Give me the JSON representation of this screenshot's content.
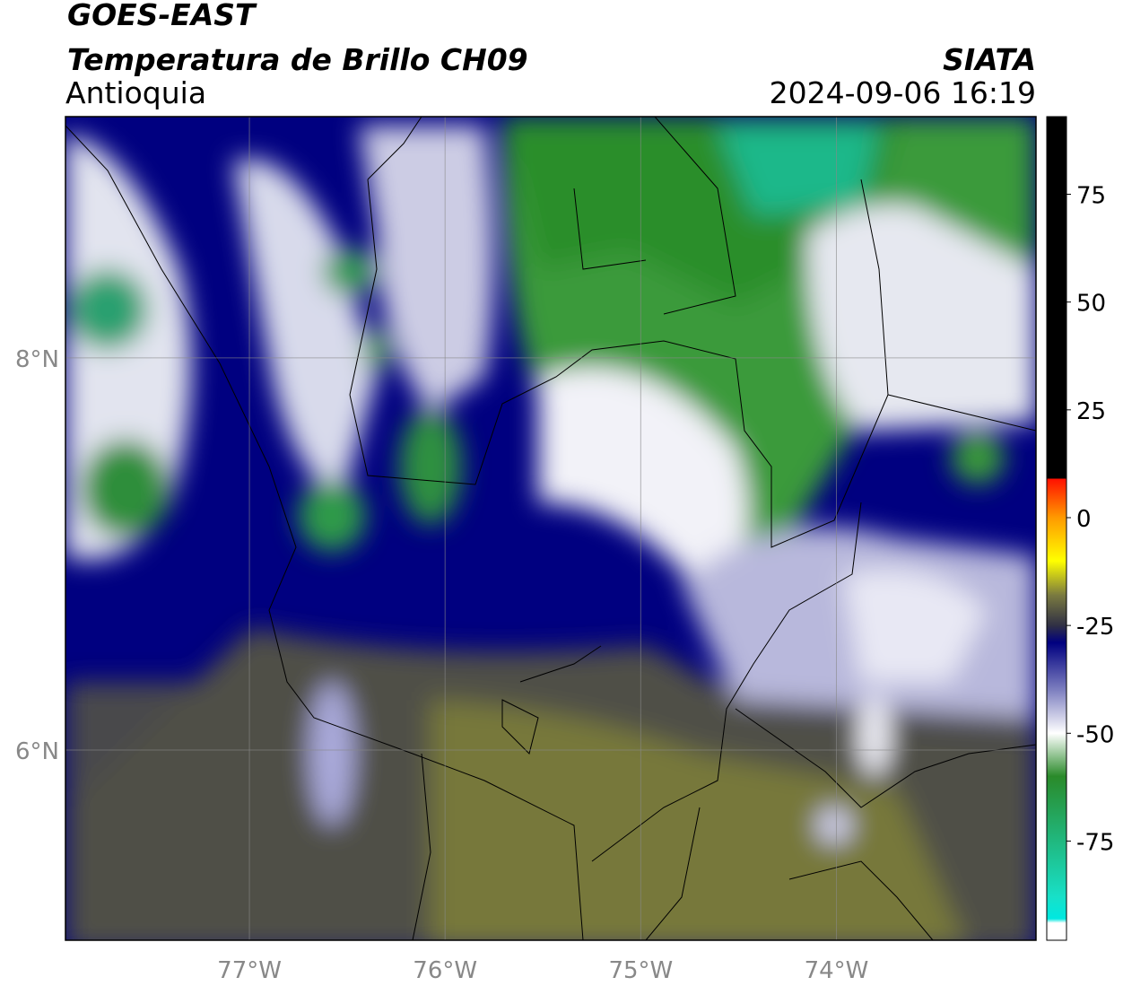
{
  "header": {
    "title": "GOES-EAST",
    "subtitle": "Temperatura de Brillo CH09",
    "region": "Antioquia",
    "source": "SIATA",
    "datetime": "2024-09-06 16:19"
  },
  "map": {
    "lon_lim": [
      -77.94,
      -72.98
    ],
    "lat_lim": [
      5.03,
      9.23
    ],
    "lon_ticks": [
      {
        "value": -77,
        "label": "77°W"
      },
      {
        "value": -76,
        "label": "76°W"
      },
      {
        "value": -75,
        "label": "75°W"
      },
      {
        "value": -74,
        "label": "74°W"
      }
    ],
    "lat_ticks": [
      {
        "value": 8,
        "label": "8°N"
      },
      {
        "value": 6,
        "label": "6°N"
      }
    ],
    "grid": true
  },
  "colorbar": {
    "lim": [
      -98,
      93
    ],
    "ticks": [
      75,
      50,
      25,
      0,
      -25,
      -50,
      -75
    ],
    "stops": [
      {
        "value": 93,
        "color": "#000000"
      },
      {
        "value": 9,
        "color": "#000000"
      },
      {
        "value": 9,
        "color": "#ff1000"
      },
      {
        "value": 0,
        "color": "#ff9a00"
      },
      {
        "value": -10,
        "color": "#ffff00"
      },
      {
        "value": -18,
        "color": "#7a7a40"
      },
      {
        "value": -25,
        "color": "#303044"
      },
      {
        "value": -29,
        "color": "#000080"
      },
      {
        "value": -40,
        "color": "#7e80c0"
      },
      {
        "value": -50,
        "color": "#ffffff"
      },
      {
        "value": -60,
        "color": "#2a8a2a"
      },
      {
        "value": -88,
        "color": "#18e0c8"
      },
      {
        "value": -93,
        "color": "#00e8e0"
      },
      {
        "value": -94,
        "color": "#ffffff"
      },
      {
        "value": -98,
        "color": "#ffffff"
      }
    ]
  }
}
